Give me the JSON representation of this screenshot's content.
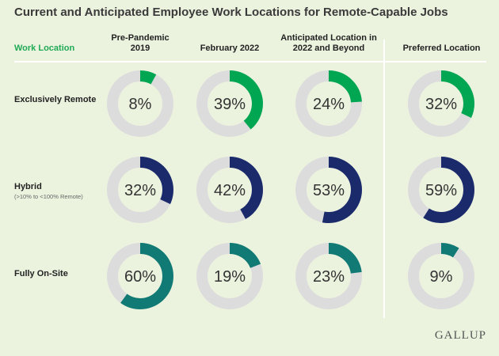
{
  "chart_data": {
    "type": "donut-grid",
    "title": "Current and Anticipated Employee Work Locations for Remote-Capable Jobs",
    "row_header": "Work Location",
    "columns": [
      "Pre-Pandemic\n2019",
      "February 2022",
      "Anticipated Location in\n2022 and Beyond",
      "Preferred Location"
    ],
    "rows": [
      {
        "label": "Exclusively Remote",
        "sublabel": "",
        "color": "#00a651",
        "values": [
          8,
          39,
          24,
          32
        ],
        "labels": [
          "8%",
          "39%",
          "24%",
          "32%"
        ]
      },
      {
        "label": "Hybrid",
        "sublabel": "(>10% to <100% Remote)",
        "color": "#1b2a6b",
        "values": [
          32,
          42,
          53,
          59
        ],
        "labels": [
          "32%",
          "42%",
          "53%",
          "59%"
        ]
      },
      {
        "label": "Fully On-Site",
        "sublabel": "",
        "color": "#117a74",
        "values": [
          60,
          19,
          23,
          9
        ],
        "labels": [
          "60%",
          "19%",
          "23%",
          "9%"
        ]
      }
    ],
    "track_color": "#dcdcdc"
  },
  "brand": "GALLUP"
}
